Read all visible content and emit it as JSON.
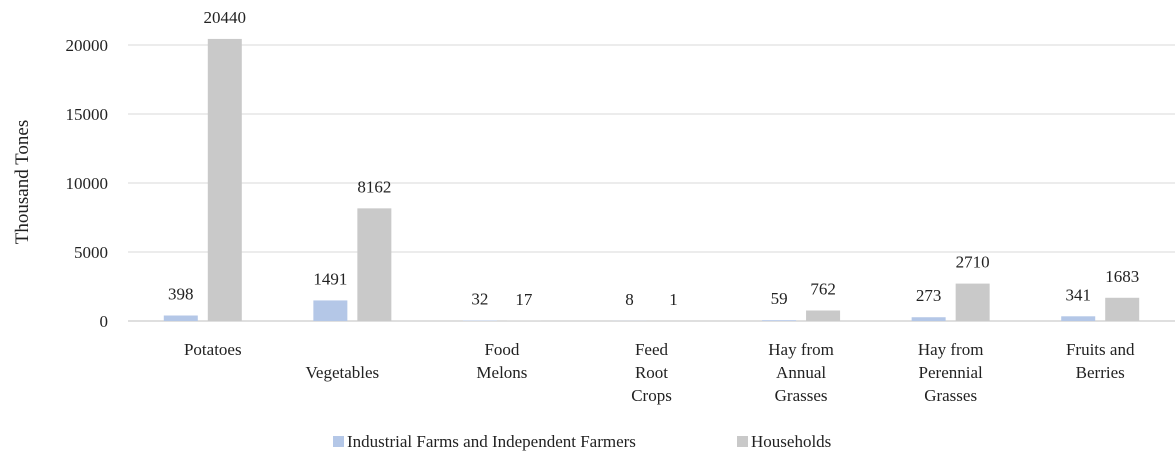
{
  "chart_data": {
    "type": "bar",
    "title": "",
    "xlabel": "",
    "ylabel": "Thousand Tones",
    "ylim": [
      0,
      20000
    ],
    "yticks": [
      "0",
      "5000",
      "10000",
      "15000",
      "20000"
    ],
    "grid": true,
    "legend_position": "bottom",
    "categories": [
      [
        "Potatoes"
      ],
      [
        "Vegetables"
      ],
      [
        "Food",
        "Melons"
      ],
      [
        "Feed",
        "Root",
        "Crops"
      ],
      [
        "Hay from",
        "Annual",
        "Grasses"
      ],
      [
        "Hay from",
        "Perennial",
        "Grasses"
      ],
      [
        "Fruits and",
        "Berries"
      ]
    ],
    "series": [
      {
        "name": "Industrial Farms and Independent Farmers",
        "color": "#b4c7e7",
        "values": [
          398,
          1491,
          32,
          8,
          59,
          273,
          341
        ],
        "labels": [
          "398",
          "1491",
          "32",
          "8",
          "59",
          "273",
          "341"
        ]
      },
      {
        "name": "Households",
        "color": "#c9c9c9",
        "values": [
          20440,
          8162,
          17,
          1,
          762,
          2710,
          1683
        ],
        "labels": [
          "20440",
          "8162",
          "17",
          "1",
          "762",
          "2710",
          "1683"
        ]
      }
    ]
  }
}
